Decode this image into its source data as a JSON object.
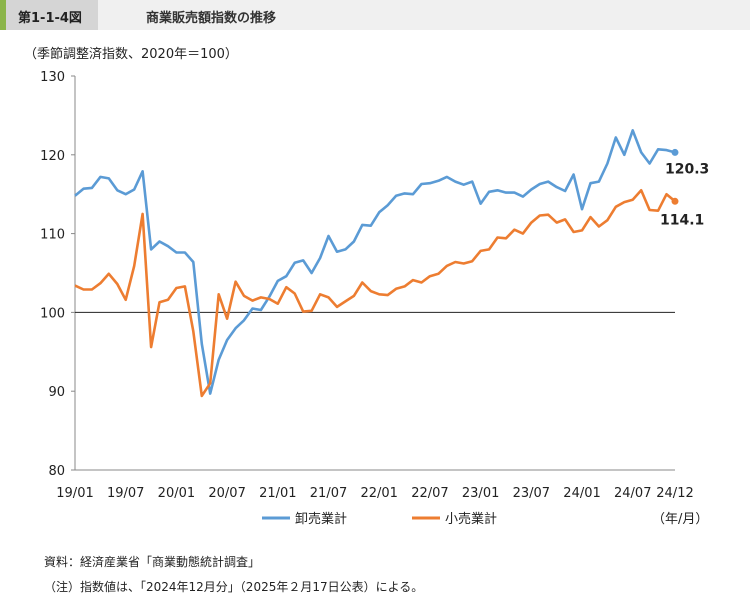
{
  "header": {
    "figure_no": "第1-1-4図",
    "title": "商業販売額指数の推移"
  },
  "chart_data": {
    "type": "line",
    "ylabel": "（季節調整済指数、2020年＝100）",
    "xlabel": "（年/月）",
    "ylim": [
      80,
      130
    ],
    "yticks": [
      80,
      90,
      100,
      110,
      120,
      130
    ],
    "xtick_labels": [
      "19/01",
      "19/07",
      "20/01",
      "20/07",
      "21/01",
      "21/07",
      "22/01",
      "22/07",
      "23/01",
      "23/07",
      "24/01",
      "24/07",
      "24/12"
    ],
    "reference_line": 100,
    "legend_position": "bottom",
    "series": [
      {
        "name": "卸売業計",
        "color": "#5b9bd5",
        "end_label": "120.3",
        "values": [
          114.8,
          115.7,
          115.8,
          117.2,
          117.0,
          115.5,
          115.0,
          115.6,
          117.9,
          108.0,
          109.0,
          108.4,
          107.6,
          107.6,
          106.4,
          96.0,
          89.7,
          94.0,
          96.5,
          98.0,
          99.0,
          100.5,
          100.3,
          102.0,
          104.0,
          104.6,
          106.3,
          106.6,
          105.0,
          106.9,
          109.7,
          107.7,
          108.0,
          109.0,
          111.1,
          111.0,
          112.7,
          113.6,
          114.8,
          115.1,
          115.0,
          116.3,
          116.4,
          116.7,
          117.2,
          116.6,
          116.2,
          116.6,
          113.8,
          115.3,
          115.5,
          115.2,
          115.2,
          114.7,
          115.6,
          116.3,
          116.6,
          115.9,
          115.4,
          117.5,
          113.1,
          116.4,
          116.6,
          118.9,
          122.2,
          120.0,
          123.1,
          120.3,
          118.9,
          120.7,
          120.6,
          120.3
        ]
      },
      {
        "name": "小売業計",
        "color": "#ed7d31",
        "end_label": "114.1",
        "values": [
          103.4,
          102.9,
          102.9,
          103.7,
          104.9,
          103.6,
          101.6,
          105.9,
          112.5,
          95.6,
          101.3,
          101.6,
          103.1,
          103.3,
          97.6,
          89.4,
          91.0,
          102.3,
          99.2,
          103.9,
          102.1,
          101.5,
          101.9,
          101.7,
          101.1,
          103.2,
          102.4,
          100.1,
          100.2,
          102.3,
          101.9,
          100.7,
          101.4,
          102.1,
          103.8,
          102.7,
          102.3,
          102.2,
          103.0,
          103.3,
          104.1,
          103.8,
          104.6,
          104.9,
          105.9,
          106.4,
          106.2,
          106.5,
          107.8,
          108.0,
          109.5,
          109.4,
          110.5,
          110.0,
          111.4,
          112.3,
          112.4,
          111.4,
          111.8,
          110.2,
          110.4,
          112.1,
          110.9,
          111.7,
          113.4,
          114.0,
          114.3,
          115.5,
          113.0,
          112.9,
          115.0,
          114.1
        ]
      }
    ]
  },
  "notes": {
    "source": "資料：経済産業省「商業動態統計調査」",
    "note": "（注）指数値は、「2024年12月分」（2025年２月17日公表）による。"
  }
}
